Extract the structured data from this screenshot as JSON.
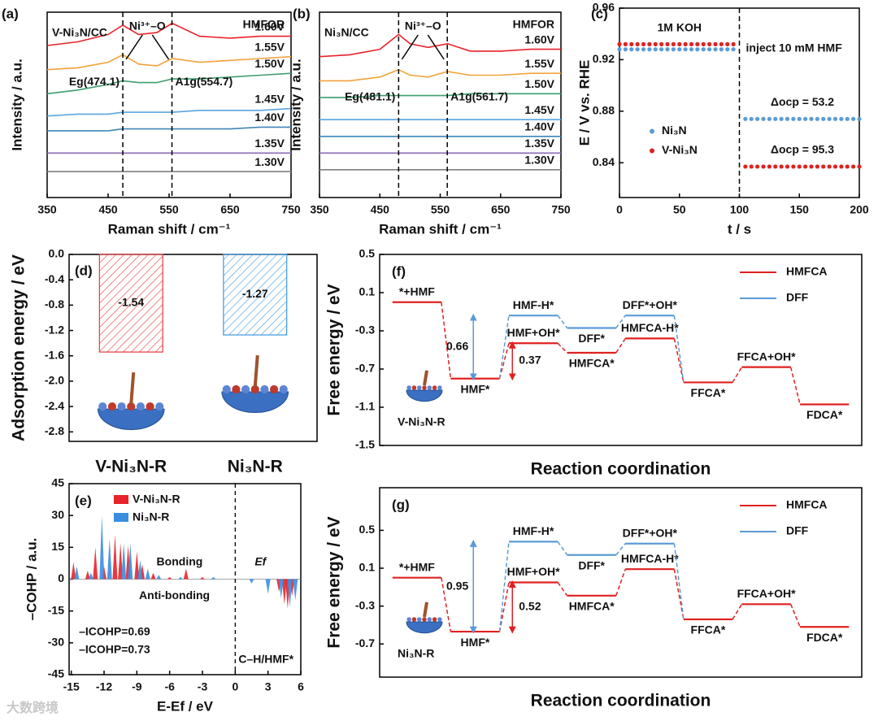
{
  "watermark": "大数跨境",
  "chart_data": [
    {
      "type": "line",
      "panel": "(a)",
      "xlabel": "Raman shift / cm⁻¹",
      "ylabel": "Intensity / a.u.",
      "sample": "V-Ni₃N/CC",
      "condition": "HMFOR",
      "species": "Ni³⁺–O",
      "peaks": [
        {
          "label": "Eg(474.1)",
          "x": 474.1
        },
        {
          "label": "A1g(554.7)",
          "x": 554.7
        }
      ],
      "xlim": [
        350,
        750
      ],
      "xticks": [
        350,
        450,
        550,
        650,
        750
      ],
      "ylim": [
        0,
        10
      ],
      "x": [
        350,
        400,
        450,
        474,
        500,
        530,
        555,
        600,
        650,
        700,
        750
      ],
      "series": [
        {
          "name": "1.60V",
          "color": "#e8232a",
          "values": [
            8.2,
            8.4,
            8.8,
            9.3,
            8.8,
            8.9,
            9.4,
            8.7,
            8.6,
            8.7,
            8.7
          ]
        },
        {
          "name": "1.55V",
          "color": "#f2a33a",
          "values": [
            6.9,
            7.0,
            7.3,
            7.7,
            7.2,
            7.1,
            7.5,
            7.3,
            7.4,
            7.5,
            7.6
          ]
        },
        {
          "name": "1.50V",
          "color": "#3d9e6f",
          "values": [
            5.6,
            5.8,
            6.1,
            6.3,
            6.2,
            6.2,
            6.4,
            6.4,
            6.5,
            6.6,
            6.7
          ]
        },
        {
          "name": "1.45V",
          "color": "#5aa5de",
          "values": [
            4.4,
            4.5,
            4.5,
            4.6,
            4.6,
            4.6,
            4.6,
            4.7,
            4.7,
            4.7,
            4.8
          ]
        },
        {
          "name": "1.40V",
          "color": "#3f86b8",
          "values": [
            3.6,
            3.6,
            3.6,
            3.7,
            3.7,
            3.7,
            3.7,
            3.7,
            3.7,
            3.8,
            3.8
          ]
        },
        {
          "name": "1.35V",
          "color": "#8b6bb1",
          "values": [
            2.4,
            2.4,
            2.4,
            2.4,
            2.4,
            2.4,
            2.4,
            2.4,
            2.4,
            2.4,
            2.4
          ]
        },
        {
          "name": "1.30V",
          "color": "#7f7f7f",
          "values": [
            1.4,
            1.4,
            1.4,
            1.4,
            1.4,
            1.4,
            1.4,
            1.4,
            1.4,
            1.4,
            1.4
          ]
        }
      ]
    },
    {
      "type": "line",
      "panel": "(b)",
      "xlabel": "Raman shift / cm⁻¹",
      "ylabel": "Intensity / a.u.",
      "sample": "Ni₃N/CC",
      "condition": "HMFOR",
      "species": "Ni³⁺–O",
      "peaks": [
        {
          "label": "Eg(481.1)",
          "x": 481.1
        },
        {
          "label": "A1g(561.7)",
          "x": 561.7
        }
      ],
      "xlim": [
        350,
        750
      ],
      "xticks": [
        350,
        450,
        550,
        650,
        750
      ],
      "ylim": [
        0,
        10
      ],
      "x": [
        350,
        400,
        450,
        481,
        500,
        530,
        562,
        600,
        650,
        700,
        750
      ],
      "series": [
        {
          "name": "1.60V",
          "color": "#e8232a",
          "values": [
            7.6,
            7.7,
            8.0,
            8.8,
            8.3,
            8.1,
            8.3,
            7.9,
            7.9,
            8.0,
            8.0
          ]
        },
        {
          "name": "1.55V",
          "color": "#f2a33a",
          "values": [
            6.3,
            6.3,
            6.5,
            6.9,
            6.6,
            6.5,
            6.8,
            6.6,
            6.6,
            6.7,
            6.7
          ]
        },
        {
          "name": "1.50V",
          "color": "#3d9e6f",
          "values": [
            5.4,
            5.4,
            5.5,
            5.5,
            5.5,
            5.5,
            5.5,
            5.6,
            5.6,
            5.6,
            5.6
          ]
        },
        {
          "name": "1.45V",
          "color": "#5aa5de",
          "values": [
            4.2,
            4.2,
            4.2,
            4.2,
            4.2,
            4.2,
            4.2,
            4.2,
            4.2,
            4.2,
            4.2
          ]
        },
        {
          "name": "1.40V",
          "color": "#3f86b8",
          "values": [
            3.3,
            3.3,
            3.3,
            3.3,
            3.3,
            3.3,
            3.3,
            3.3,
            3.3,
            3.3,
            3.3
          ]
        },
        {
          "name": "1.35V",
          "color": "#8b6bb1",
          "values": [
            2.4,
            2.4,
            2.4,
            2.4,
            2.4,
            2.4,
            2.4,
            2.4,
            2.4,
            2.4,
            2.4
          ]
        },
        {
          "name": "1.30V",
          "color": "#7f7f7f",
          "values": [
            1.5,
            1.5,
            1.5,
            1.5,
            1.5,
            1.5,
            1.5,
            1.5,
            1.5,
            1.5,
            1.5
          ]
        }
      ]
    },
    {
      "type": "scatter",
      "panel": "(c)",
      "xlabel": "t / s",
      "ylabel": "E / V vs. RHE",
      "condition": "1M KOH",
      "event": {
        "label": "inject 10 mM HMF",
        "x": 100,
        "color": "#f0a030"
      },
      "deltas": [
        "Δocp = 53.2",
        "Δocp = 95.3"
      ],
      "xlim": [
        0,
        200
      ],
      "xticks": [
        0,
        50,
        100,
        150,
        200
      ],
      "ylim": [
        0.813,
        0.96
      ],
      "yticks": [
        0.84,
        0.88,
        0.92,
        0.96
      ],
      "legend": "center left",
      "x": [
        0,
        5,
        10,
        15,
        20,
        25,
        30,
        35,
        40,
        45,
        50,
        55,
        60,
        65,
        70,
        75,
        80,
        85,
        90,
        95,
        105,
        110,
        115,
        120,
        125,
        130,
        135,
        140,
        145,
        150,
        155,
        160,
        165,
        170,
        175,
        180,
        185,
        190,
        195,
        200
      ],
      "series": [
        {
          "name": "Ni₃N",
          "color": "#5b9bd5",
          "values": [
            0.928,
            0.928,
            0.928,
            0.928,
            0.928,
            0.928,
            0.928,
            0.928,
            0.928,
            0.928,
            0.928,
            0.928,
            0.928,
            0.928,
            0.928,
            0.928,
            0.928,
            0.928,
            0.928,
            0.928,
            0.874,
            0.874,
            0.874,
            0.874,
            0.874,
            0.874,
            0.874,
            0.874,
            0.874,
            0.874,
            0.874,
            0.874,
            0.874,
            0.874,
            0.874,
            0.874,
            0.874,
            0.874,
            0.874,
            0.874
          ]
        },
        {
          "name": "V-Ni₃N",
          "color": "#e02020",
          "values": [
            0.932,
            0.932,
            0.932,
            0.932,
            0.932,
            0.932,
            0.932,
            0.932,
            0.932,
            0.932,
            0.932,
            0.932,
            0.932,
            0.932,
            0.932,
            0.932,
            0.932,
            0.932,
            0.932,
            0.932,
            0.837,
            0.837,
            0.837,
            0.837,
            0.837,
            0.837,
            0.837,
            0.837,
            0.837,
            0.837,
            0.837,
            0.837,
            0.837,
            0.837,
            0.837,
            0.837,
            0.837,
            0.837,
            0.837,
            0.837
          ]
        }
      ]
    },
    {
      "type": "bar",
      "panel": "(d)",
      "ylabel": "Adsorption energy / eV",
      "categories": [
        "V-Ni₃N-R",
        "Ni₃N-R"
      ],
      "values": [
        -1.54,
        -1.27
      ],
      "value_labels": [
        "-1.54",
        "-1.27"
      ],
      "colors": [
        "#e8474a",
        "#4a9fe0"
      ],
      "hatch": true,
      "ylim": [
        -2.95,
        0
      ],
      "yticks": [
        {
          "value": 0,
          "label": "0.0"
        },
        -0.4,
        -0.8,
        -1.2,
        -1.6,
        {
          "value": -2,
          "label": "-2.0"
        },
        -2.4,
        -2.8
      ]
    },
    {
      "type": "stem",
      "panel": "(e)",
      "xlabel": "E-Ef / eV",
      "ylabel": "–COHP / a.u.",
      "notes": {
        "bonding": "Bonding",
        "antibonding": "Anti-bonding",
        "bond": "C–H/HMF*"
      },
      "fermi": {
        "label": "Ef",
        "x": 0
      },
      "icohp": [
        "–ICOHP=0.69",
        "–ICOHP=0.73"
      ],
      "xlim": [
        -15.2,
        6
      ],
      "xticks": [
        -15,
        -12,
        -9,
        -6,
        -3,
        0,
        3,
        6
      ],
      "ylim": [
        -45,
        45
      ],
      "yticks": [
        -45,
        -30,
        -15,
        0,
        15,
        30,
        45
      ],
      "series": [
        {
          "name": "V-Ni₃N-R",
          "color": "#e8232a",
          "x": [
            -14.8,
            -13.5,
            -12.8,
            -12.0,
            -11.0,
            -10.5,
            -9.8,
            -9.0,
            -8.5,
            -7.5,
            -6.0,
            -4.5,
            -3.0,
            4.0,
            4.5,
            4.8,
            5.2
          ],
          "values": [
            8,
            4,
            15,
            6,
            21,
            17,
            16,
            13,
            7,
            3,
            1,
            5,
            1,
            -6,
            -12,
            -14,
            -8
          ]
        },
        {
          "name": "Ni₃N-R",
          "color": "#3a8ee0",
          "x": [
            -14.5,
            -13.2,
            -12.2,
            -11.5,
            -10.2,
            -9.6,
            -8.7,
            -8.0,
            -7.0,
            -5.0,
            -2.0,
            1.5,
            3.0,
            4.2,
            5.0,
            5.5
          ],
          "values": [
            6,
            3,
            30,
            19,
            17,
            17,
            9,
            5,
            2,
            1,
            1,
            -2,
            -7,
            -9,
            -13,
            -10
          ]
        }
      ]
    },
    {
      "type": "energy",
      "panel": "(f)",
      "xlabel": "Reaction coordination",
      "ylabel": "Free energy / eV",
      "system": "V-Ni₃N-R",
      "ylim": [
        -1.5,
        0.5
      ],
      "yticks": [
        0.5,
        0.1,
        -0.3,
        -0.7,
        -1.1,
        -1.5
      ],
      "legend": "upper right",
      "barriers": [
        0.37,
        0.66
      ],
      "series": [
        {
          "name": "HMFCA",
          "color": "#e02020",
          "labels": [
            "*+HMF",
            "HMF*",
            "HMF+OH*",
            "HMFCA*",
            "HMFCA-H*",
            "FFCA*",
            "FFCA+OH*",
            "FDCA*"
          ],
          "values": [
            0.0,
            -0.8,
            -0.43,
            -0.53,
            -0.38,
            -0.84,
            -0.68,
            -1.07
          ]
        },
        {
          "name": "DFF",
          "color": "#5b9bd5",
          "labels": [
            null,
            null,
            "HMF-H*",
            "DFF*",
            "DFF*+OH*",
            null,
            null,
            null
          ],
          "values": [
            null,
            null,
            -0.14,
            -0.27,
            -0.14,
            null,
            null,
            null
          ]
        }
      ]
    },
    {
      "type": "energy",
      "panel": "(g)",
      "xlabel": "Reaction coordination",
      "ylabel": "Free energy / eV",
      "system": "Ni₃N-R",
      "ylim": [
        -1.05,
        0.95
      ],
      "yticks": [
        0.5,
        0.1,
        -0.3,
        -0.7
      ],
      "legend": "upper right",
      "barriers": [
        0.52,
        0.95
      ],
      "series": [
        {
          "name": "HMFCA",
          "color": "#e02020",
          "labels": [
            "*+HMF",
            "HMF*",
            "HMF+OH*",
            "HMFCA*",
            "HMFCA-H*",
            "FFCA*",
            "FFCA+OH*",
            "FDCA*"
          ],
          "values": [
            0.0,
            -0.57,
            -0.05,
            -0.19,
            0.09,
            -0.44,
            -0.28,
            -0.52
          ]
        },
        {
          "name": "DFF",
          "color": "#5b9bd5",
          "labels": [
            null,
            null,
            "HMF-H*",
            "DFF*",
            "DFF*+OH*",
            null,
            null,
            null
          ],
          "values": [
            null,
            null,
            0.38,
            0.24,
            0.36,
            null,
            null,
            null
          ]
        }
      ]
    }
  ]
}
